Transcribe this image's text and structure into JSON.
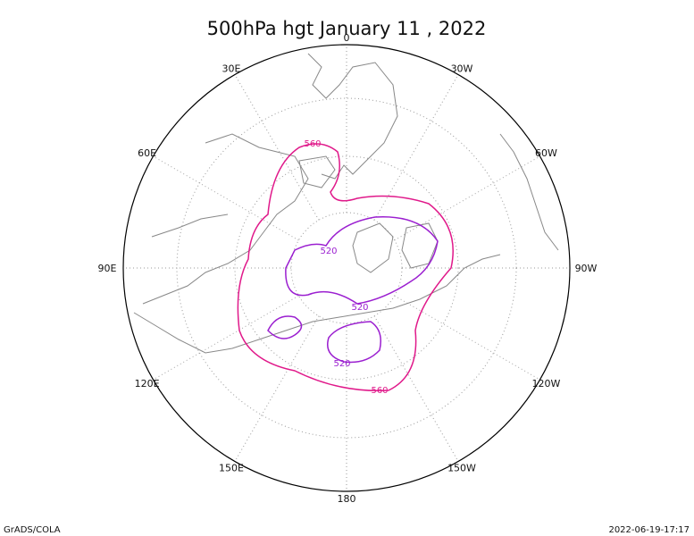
{
  "title": "500hPa hgt January 11 , 2022",
  "longitude_labels": [
    "0",
    "30W",
    "60W",
    "90W",
    "120W",
    "150W",
    "180",
    "150E",
    "120E",
    "90E",
    "60E",
    "30E"
  ],
  "contour_labels": [
    "560",
    "520",
    "520",
    "520",
    "560"
  ],
  "footer": {
    "left": "GrADS/COLA",
    "right": "2022-06-19-17:17"
  }
}
